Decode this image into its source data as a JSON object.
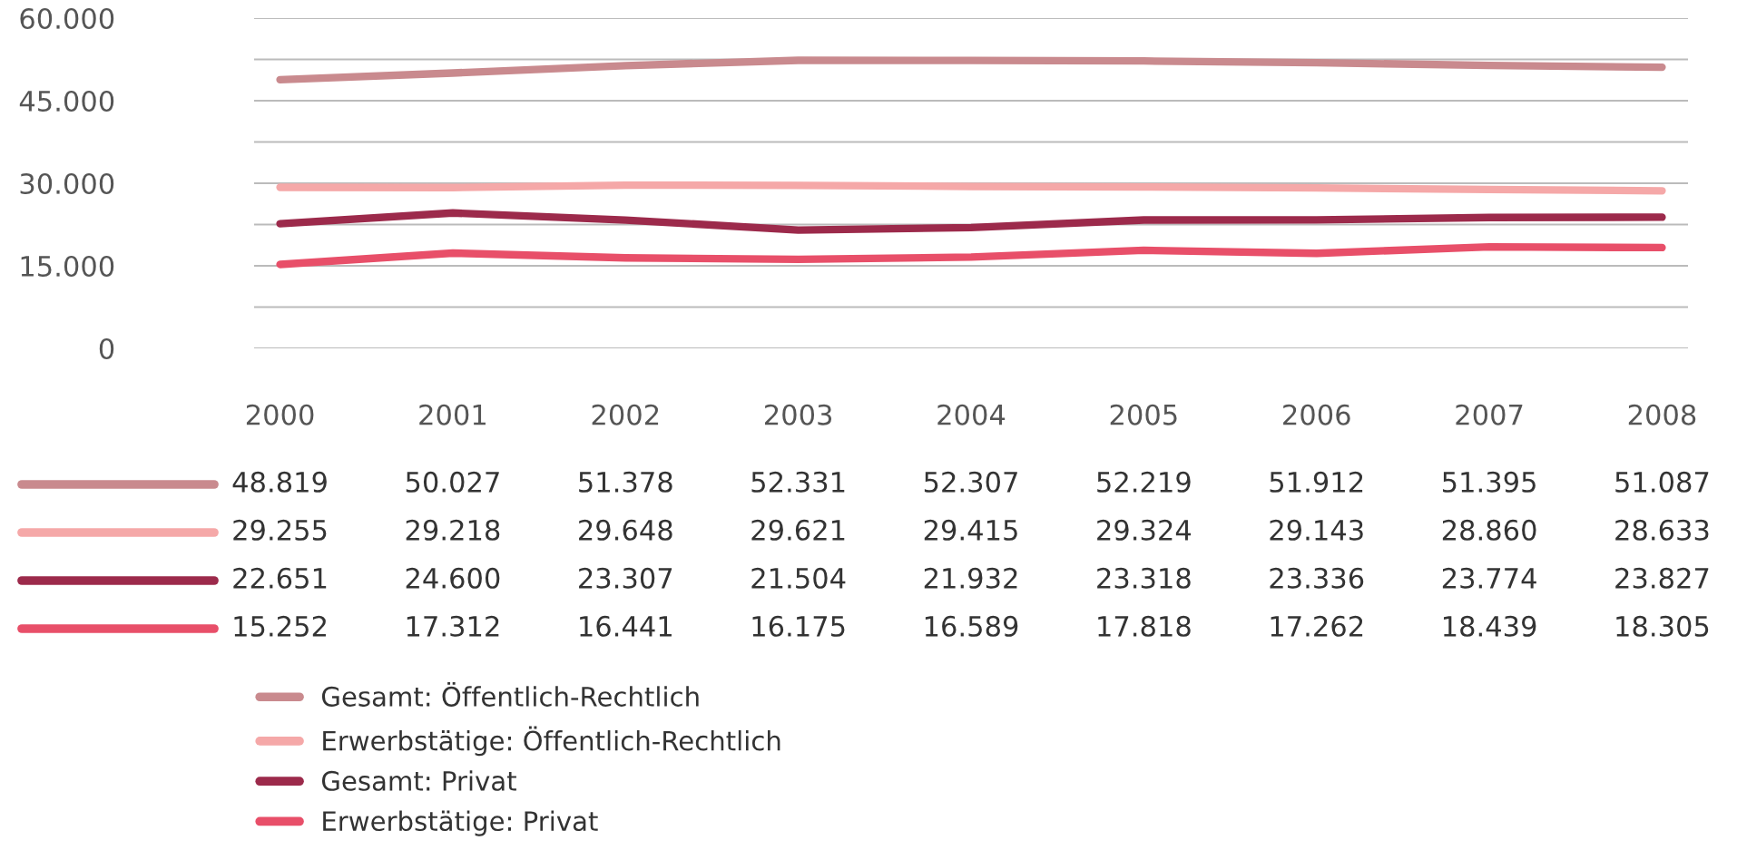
{
  "chart_data": {
    "type": "line",
    "categories": [
      "2000",
      "2001",
      "2002",
      "2003",
      "2004",
      "2005",
      "2006",
      "2007",
      "2008"
    ],
    "series": [
      {
        "name": "Gesamt: Öffentlich-Rechtlich",
        "color": "#c98a8e",
        "values": [
          48819,
          50027,
          51378,
          52331,
          52307,
          52219,
          51912,
          51395,
          51087
        ],
        "value_labels": [
          "48.819",
          "50.027",
          "51.378",
          "52.331",
          "52.307",
          "52.219",
          "51.912",
          "51.395",
          "51.087"
        ]
      },
      {
        "name": "Erwerbstätige: Öffentlich-Rechtlich",
        "color": "#f5a8a8",
        "values": [
          29255,
          29218,
          29648,
          29621,
          29415,
          29324,
          29143,
          28860,
          28633
        ],
        "value_labels": [
          "29.255",
          "29.218",
          "29.648",
          "29.621",
          "29.415",
          "29.324",
          "29.143",
          "28.860",
          "28.633"
        ]
      },
      {
        "name": "Gesamt: Privat",
        "color": "#9c2a4b",
        "values": [
          22651,
          24600,
          23307,
          21504,
          21932,
          23318,
          23336,
          23774,
          23827
        ],
        "value_labels": [
          "22.651",
          "24.600",
          "23.307",
          "21.504",
          "21.932",
          "23.318",
          "23.336",
          "23.774",
          "23.827"
        ]
      },
      {
        "name": "Erwerbstätige: Privat",
        "color": "#e84f69",
        "values": [
          15252,
          17312,
          16441,
          16175,
          16589,
          17818,
          17262,
          18439,
          18305
        ],
        "value_labels": [
          "15.252",
          "17.312",
          "16.441",
          "16.175",
          "16.589",
          "17.818",
          "17.262",
          "18.439",
          "18.305"
        ]
      }
    ],
    "ylim": [
      0,
      60000
    ],
    "yticks": [
      {
        "value": 0,
        "label": "0"
      },
      {
        "value": 7500,
        "label": null
      },
      {
        "value": 15000,
        "label": "15.000"
      },
      {
        "value": 22500,
        "label": null
      },
      {
        "value": 30000,
        "label": "30.000"
      },
      {
        "value": 37500,
        "label": null
      },
      {
        "value": 45000,
        "label": "45.000"
      },
      {
        "value": 52500,
        "label": null
      },
      {
        "value": 60000,
        "label": "60.000"
      }
    ],
    "grid": "y",
    "legend": "bottom left",
    "marker": "none",
    "line_style": "solid"
  }
}
